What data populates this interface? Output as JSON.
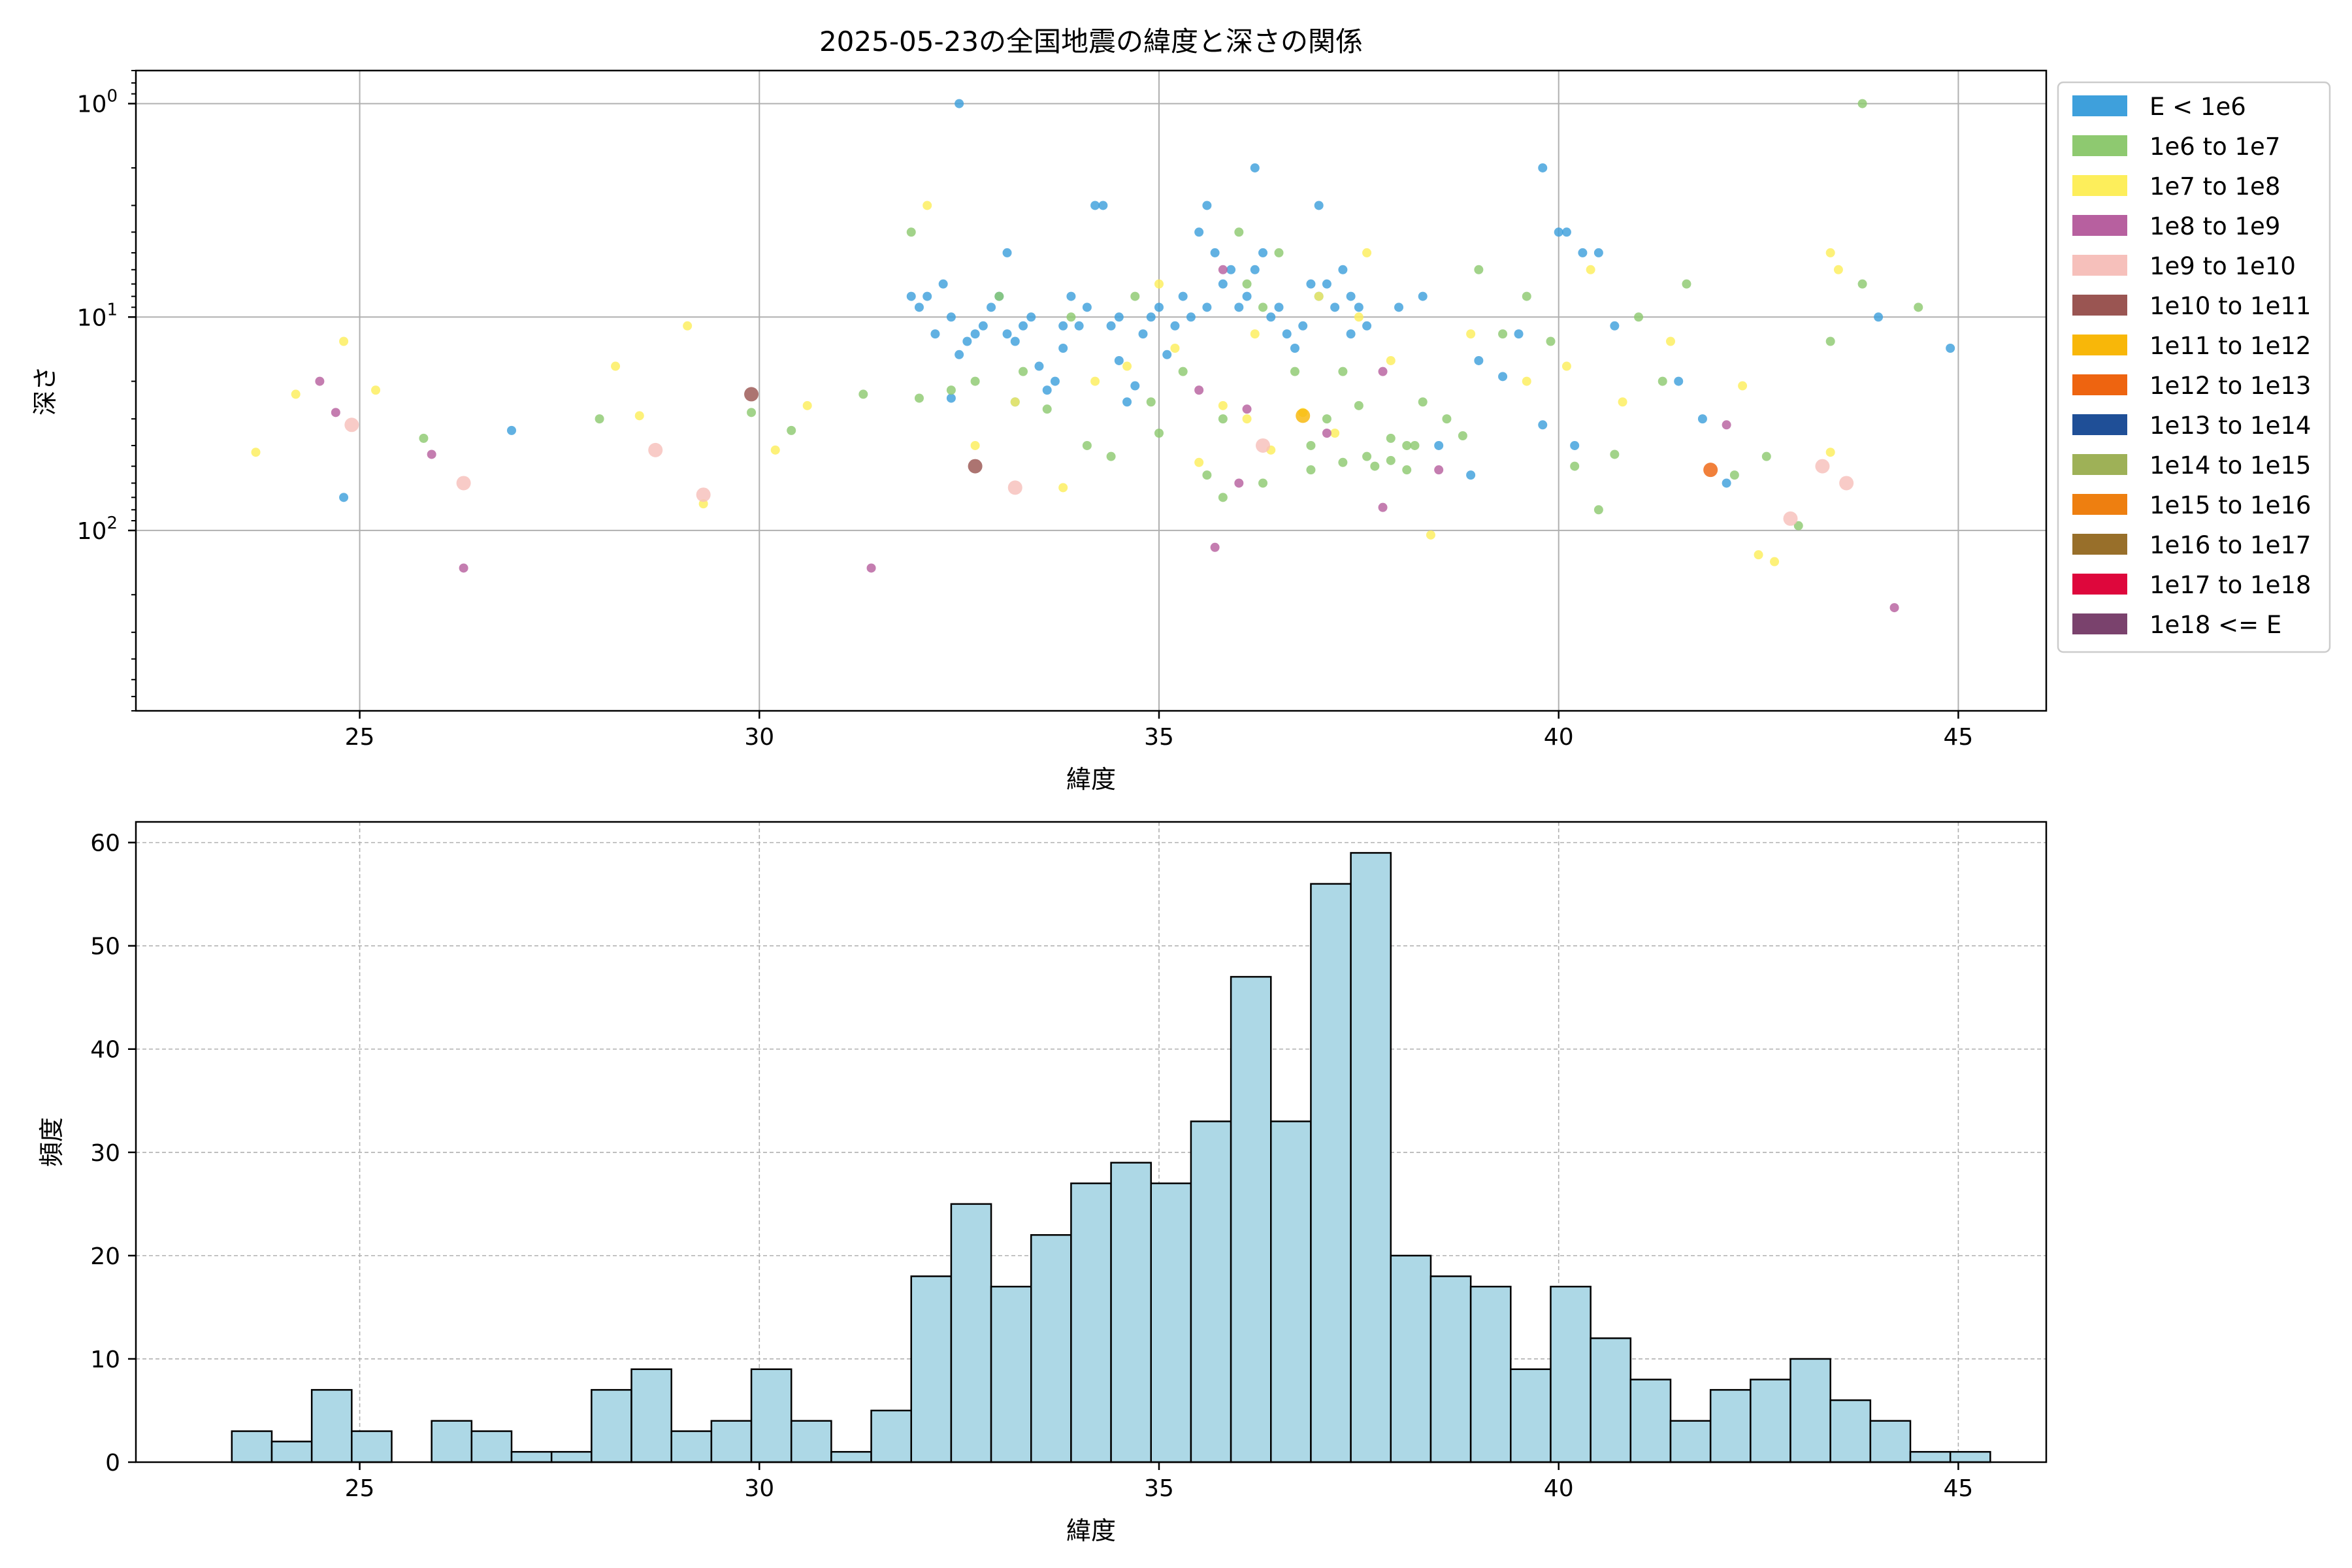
{
  "chart_data": [
    {
      "type": "scatter",
      "title": "2025-05-23の全国地震の緯度と深さの関係",
      "xlabel": "緯度",
      "ylabel": "深さ",
      "xlim": [
        22.2,
        46.1
      ],
      "ylim": [
        0.7,
        700
      ],
      "yscale": "log",
      "yaxis_inverted": true,
      "x_ticks": [
        25,
        30,
        35,
        40,
        45
      ],
      "y_ticks": [
        {
          "value": 1,
          "base": "10",
          "exp": "0"
        },
        {
          "value": 10,
          "base": "10",
          "exp": "1"
        },
        {
          "value": 100,
          "base": "10",
          "exp": "2"
        }
      ],
      "grid": true,
      "legend_position": "outside-right",
      "legend": [
        {
          "label": "E < 1e6",
          "color": "#3ea0dc"
        },
        {
          "label": "1e6 to 1e7",
          "color": "#8ec970"
        },
        {
          "label": "1e7 to 1e8",
          "color": "#fdee5b"
        },
        {
          "label": "1e8 to 1e9",
          "color": "#b7609f"
        },
        {
          "label": "1e9 to 1e10",
          "color": "#f6c0bb"
        },
        {
          "label": "1e10 to 1e11",
          "color": "#9a5552"
        },
        {
          "label": "1e11 to 1e12",
          "color": "#f8b709"
        },
        {
          "label": "1e12 to 1e13",
          "color": "#ee6410"
        },
        {
          "label": "1e13 to 1e14",
          "color": "#1f4f97"
        },
        {
          "label": "1e14 to 1e15",
          "color": "#9eb157"
        },
        {
          "label": "1e15 to 1e16",
          "color": "#ee7f10"
        },
        {
          "label": "1e16 to 1e17",
          "color": "#986f2a"
        },
        {
          "label": "1e17 to 1e18",
          "color": "#de073c"
        },
        {
          "label": "1e18 <= E",
          "color": "#7a426d"
        }
      ],
      "series": [
        {
          "category": 0,
          "points": [
            [
              24.8,
              70
            ],
            [
              26.9,
              34
            ],
            [
              32.5,
              1
            ],
            [
              31.9,
              8
            ],
            [
              32.0,
              9
            ],
            [
              32.1,
              8
            ],
            [
              32.3,
              7
            ],
            [
              32.4,
              10
            ],
            [
              32.5,
              15
            ],
            [
              32.6,
              13
            ],
            [
              32.7,
              12
            ],
            [
              32.8,
              11
            ],
            [
              32.9,
              9
            ],
            [
              33.0,
              8
            ],
            [
              33.1,
              12
            ],
            [
              33.2,
              13
            ],
            [
              33.3,
              11
            ],
            [
              33.4,
              10
            ],
            [
              33.5,
              17
            ],
            [
              33.6,
              22
            ],
            [
              33.7,
              20
            ],
            [
              33.8,
              11
            ],
            [
              33.9,
              8
            ],
            [
              34.0,
              11
            ],
            [
              34.1,
              9
            ],
            [
              34.2,
              3
            ],
            [
              34.3,
              3
            ],
            [
              34.4,
              11
            ],
            [
              34.5,
              10
            ],
            [
              34.6,
              25
            ],
            [
              34.7,
              21
            ],
            [
              34.8,
              12
            ],
            [
              34.9,
              10
            ],
            [
              35.0,
              9
            ],
            [
              35.1,
              15
            ],
            [
              35.2,
              11
            ],
            [
              35.3,
              8
            ],
            [
              35.4,
              10
            ],
            [
              35.5,
              4
            ],
            [
              35.6,
              3
            ],
            [
              35.7,
              5
            ],
            [
              35.8,
              7
            ],
            [
              35.9,
              6
            ],
            [
              36.0,
              9
            ],
            [
              36.1,
              8
            ],
            [
              36.2,
              2
            ],
            [
              36.3,
              5
            ],
            [
              36.4,
              10
            ],
            [
              36.5,
              9
            ],
            [
              36.6,
              12
            ],
            [
              36.7,
              14
            ],
            [
              36.8,
              11
            ],
            [
              36.9,
              7
            ],
            [
              37.0,
              3
            ],
            [
              37.1,
              7
            ],
            [
              37.2,
              9
            ],
            [
              37.3,
              6
            ],
            [
              37.4,
              8
            ],
            [
              37.5,
              9
            ],
            [
              37.6,
              11
            ],
            [
              38.0,
              9
            ],
            [
              38.3,
              8
            ],
            [
              39.0,
              16
            ],
            [
              39.3,
              19
            ],
            [
              39.8,
              2
            ],
            [
              40.0,
              4
            ],
            [
              40.1,
              4
            ],
            [
              40.3,
              5
            ],
            [
              40.5,
              5
            ],
            [
              40.7,
              11
            ],
            [
              41.8,
              30
            ],
            [
              42.1,
              60
            ],
            [
              44.0,
              10
            ],
            [
              44.9,
              14
            ],
            [
              32.2,
              12
            ],
            [
              32.4,
              24
            ],
            [
              33.2,
              25
            ],
            [
              33.8,
              14
            ],
            [
              34.5,
              16
            ],
            [
              35.6,
              9
            ],
            [
              36.2,
              6
            ],
            [
              37.0,
              8
            ],
            [
              37.4,
              12
            ],
            [
              38.5,
              40
            ],
            [
              39.5,
              12
            ],
            [
              40.2,
              40
            ],
            [
              41.5,
              20
            ],
            [
              38.9,
              55
            ],
            [
              39.8,
              32
            ],
            [
              33.1,
              5
            ]
          ]
        },
        {
          "category": 1,
          "points": [
            [
              25.8,
              37
            ],
            [
              28.0,
              30
            ],
            [
              29.9,
              28
            ],
            [
              30.4,
              34
            ],
            [
              31.3,
              23
            ],
            [
              31.9,
              4
            ],
            [
              32.0,
              24
            ],
            [
              32.4,
              22
            ],
            [
              32.7,
              20
            ],
            [
              33.0,
              8
            ],
            [
              33.3,
              18
            ],
            [
              33.6,
              27
            ],
            [
              33.9,
              10
            ],
            [
              34.1,
              40
            ],
            [
              34.4,
              45
            ],
            [
              34.7,
              8
            ],
            [
              35.0,
              35
            ],
            [
              35.3,
              18
            ],
            [
              35.6,
              55
            ],
            [
              35.8,
              30
            ],
            [
              36.0,
              4
            ],
            [
              36.1,
              7
            ],
            [
              36.3,
              9
            ],
            [
              36.5,
              5
            ],
            [
              36.7,
              18
            ],
            [
              36.9,
              40
            ],
            [
              37.1,
              30
            ],
            [
              37.3,
              18
            ],
            [
              37.5,
              26
            ],
            [
              37.7,
              50
            ],
            [
              37.9,
              37
            ],
            [
              38.1,
              40
            ],
            [
              38.3,
              25
            ],
            [
              38.6,
              30
            ],
            [
              38.8,
              36
            ],
            [
              39.0,
              6
            ],
            [
              39.3,
              12
            ],
            [
              39.6,
              8
            ],
            [
              39.9,
              13
            ],
            [
              40.2,
              50
            ],
            [
              40.5,
              80
            ],
            [
              40.7,
              44
            ],
            [
              41.0,
              10
            ],
            [
              41.3,
              20
            ],
            [
              41.6,
              7
            ],
            [
              42.2,
              55
            ],
            [
              42.6,
              45
            ],
            [
              43.0,
              95
            ],
            [
              43.4,
              13
            ],
            [
              43.8,
              1
            ],
            [
              43.8,
              7
            ],
            [
              44.5,
              9
            ],
            [
              34.9,
              25
            ],
            [
              35.8,
              70
            ],
            [
              36.3,
              60
            ],
            [
              37.6,
              45
            ],
            [
              38.2,
              40
            ],
            [
              36.9,
              52
            ],
            [
              37.3,
              48
            ],
            [
              37.9,
              47
            ],
            [
              38.1,
              52
            ]
          ]
        },
        {
          "category": 2,
          "points": [
            [
              23.7,
              43
            ],
            [
              24.2,
              23
            ],
            [
              24.8,
              13
            ],
            [
              25.2,
              22
            ],
            [
              28.2,
              17
            ],
            [
              28.5,
              29
            ],
            [
              29.1,
              11
            ],
            [
              29.3,
              75
            ],
            [
              30.2,
              42
            ],
            [
              30.6,
              26
            ],
            [
              32.1,
              3
            ],
            [
              32.7,
              40
            ],
            [
              33.2,
              25
            ],
            [
              33.8,
              63
            ],
            [
              34.2,
              20
            ],
            [
              34.6,
              17
            ],
            [
              35.0,
              7
            ],
            [
              35.2,
              14
            ],
            [
              35.5,
              48
            ],
            [
              35.8,
              26
            ],
            [
              36.1,
              30
            ],
            [
              36.4,
              42
            ],
            [
              36.8,
              28
            ],
            [
              37.0,
              8
            ],
            [
              37.2,
              35
            ],
            [
              37.5,
              10
            ],
            [
              37.9,
              16
            ],
            [
              38.4,
              105
            ],
            [
              38.9,
              12
            ],
            [
              39.6,
              20
            ],
            [
              40.1,
              17
            ],
            [
              40.4,
              6
            ],
            [
              40.8,
              25
            ],
            [
              41.4,
              13
            ],
            [
              42.3,
              21
            ],
            [
              42.5,
              130
            ],
            [
              42.7,
              140
            ],
            [
              43.4,
              5
            ],
            [
              43.5,
              6
            ],
            [
              43.4,
              43
            ],
            [
              37.6,
              5
            ],
            [
              36.2,
              12
            ]
          ]
        },
        {
          "category": 3,
          "points": [
            [
              24.5,
              20
            ],
            [
              24.7,
              28
            ],
            [
              25.9,
              44
            ],
            [
              26.3,
              150
            ],
            [
              31.4,
              150
            ],
            [
              35.5,
              22
            ],
            [
              35.7,
              120
            ],
            [
              35.8,
              6
            ],
            [
              36.0,
              60
            ],
            [
              36.1,
              27
            ],
            [
              37.1,
              35
            ],
            [
              37.8,
              18
            ],
            [
              37.8,
              78
            ],
            [
              38.5,
              52
            ],
            [
              42.1,
              32
            ],
            [
              44.2,
              230
            ]
          ]
        },
        {
          "category": 4,
          "points": [
            [
              24.9,
              32
            ],
            [
              26.3,
              60
            ],
            [
              28.7,
              42
            ],
            [
              29.3,
              68
            ],
            [
              33.2,
              63
            ],
            [
              36.3,
              40
            ],
            [
              42.9,
              88
            ],
            [
              43.3,
              50
            ],
            [
              43.6,
              60
            ]
          ]
        },
        {
          "category": 5,
          "points": [
            [
              29.9,
              23
            ],
            [
              32.7,
              50
            ]
          ]
        },
        {
          "category": 6,
          "points": [
            [
              36.8,
              29
            ]
          ]
        },
        {
          "category": 7,
          "points": [
            [
              41.9,
              52
            ]
          ]
        },
        {
          "category": 8,
          "points": []
        },
        {
          "category": 9,
          "points": []
        },
        {
          "category": 10,
          "points": []
        },
        {
          "category": 11,
          "points": []
        },
        {
          "category": 12,
          "points": []
        },
        {
          "category": 13,
          "points": []
        }
      ]
    },
    {
      "type": "bar",
      "title": "",
      "xlabel": "緯度",
      "ylabel": "頻度",
      "xlim": [
        22.2,
        46.1
      ],
      "ylim": [
        0,
        62
      ],
      "x_ticks": [
        25,
        30,
        35,
        40,
        45
      ],
      "y_ticks": [
        0,
        10,
        20,
        30,
        40,
        50,
        60
      ],
      "grid": true,
      "bar_color": "#add8e6",
      "edge_color": "#000000",
      "bin_start": 23.4,
      "bin_width": 0.5,
      "values": [
        3,
        2,
        7,
        3,
        0,
        4,
        3,
        1,
        1,
        7,
        9,
        3,
        4,
        9,
        4,
        1,
        5,
        18,
        25,
        17,
        22,
        27,
        29,
        27,
        33,
        47,
        33,
        56,
        59,
        20,
        18,
        17,
        9,
        17,
        12,
        8,
        4,
        7,
        8,
        10,
        6,
        4,
        1,
        1
      ]
    }
  ]
}
